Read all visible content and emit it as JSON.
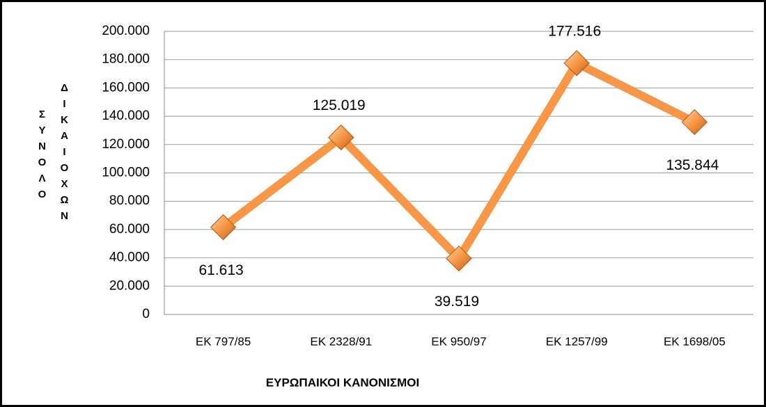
{
  "chart_data": {
    "type": "line",
    "x_label": "ΕΥΡΩΠΑΙΚΟΙ ΚΑΝΟΝΙΣΜΟΙ",
    "y_label": [
      "ΣΥΝΟΛΟ",
      "ΔΙΚΑΙΟΧΩΝ"
    ],
    "categories": [
      "ΕΚ 797/85",
      "ΕΚ 2328/91",
      "ΕΚ 950/97",
      "ΕΚ 1257/99",
      "ΕΚ 1698/05"
    ],
    "series": [
      {
        "name": "ΣΥΝΟΛΟ ΔΙΚΑΙΟΧΩΝ",
        "color": "#f79646",
        "values": [
          61613,
          125019,
          39519,
          177516,
          135844
        ],
        "value_labels": [
          "61.613",
          "125.019",
          "39.519",
          "177.516",
          "135.844"
        ]
      }
    ],
    "ylim": [
      0,
      200000
    ],
    "yticks": [
      0,
      {
        "value": 20000,
        "label": "20.000"
      },
      {
        "value": 40000,
        "label": "40.000"
      },
      {
        "value": 60000,
        "label": "60.000"
      },
      {
        "value": 80000,
        "label": "80.000"
      },
      {
        "value": 100000,
        "label": "100.000"
      },
      {
        "value": 120000,
        "label": "120.000"
      },
      {
        "value": 140000,
        "label": "140.000"
      },
      {
        "value": 160000,
        "label": "160.000"
      },
      {
        "value": 180000,
        "label": "180.000"
      },
      {
        "value": 200000,
        "label": "200.000"
      }
    ],
    "grid": true
  }
}
